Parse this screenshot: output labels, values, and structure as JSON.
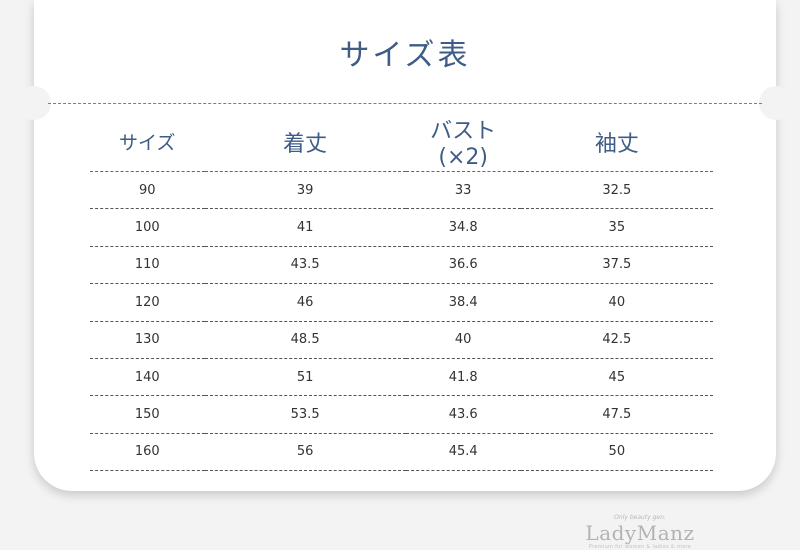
{
  "title": "サイズ表",
  "table": {
    "headers": [
      "サイズ",
      "着丈",
      "バスト(×2)",
      "袖丈"
    ],
    "rows": [
      [
        "90",
        "39",
        "33",
        "32.5"
      ],
      [
        "100",
        "41",
        "34.8",
        "35"
      ],
      [
        "110",
        "43.5",
        "36.6",
        "37.5"
      ],
      [
        "120",
        "46",
        "38.4",
        "40"
      ],
      [
        "130",
        "48.5",
        "40",
        "42.5"
      ],
      [
        "140",
        "51",
        "41.8",
        "45"
      ],
      [
        "150",
        "53.5",
        "43.6",
        "47.5"
      ],
      [
        "160",
        "56",
        "45.4",
        "50"
      ]
    ]
  },
  "brand": {
    "tagline": "Only beauty gen.",
    "name": "LadyManz",
    "subline": "Premium for women & ladies & more"
  },
  "colors": {
    "heading": "#3e5c86",
    "divider": "#c0625a",
    "background": "#f3f3f4",
    "card": "#ffffff"
  }
}
